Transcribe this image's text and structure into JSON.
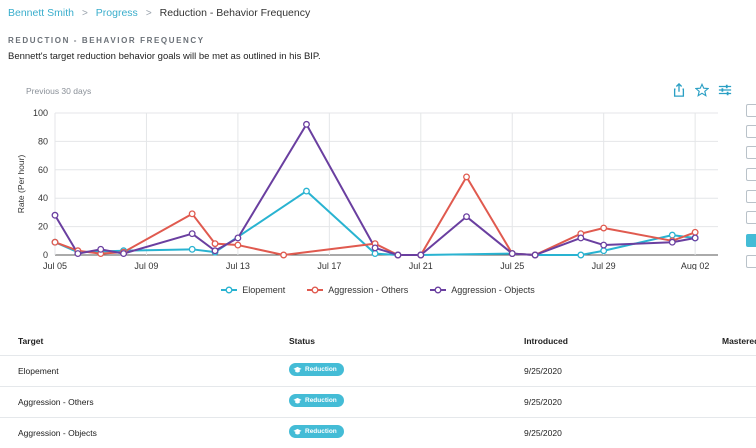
{
  "breadcrumb": {
    "items": [
      "Bennett Smith",
      "Progress"
    ],
    "current": "Reduction - Behavior Frequency"
  },
  "section": {
    "heading": "REDUCTION - BEHAVIOR FREQUENCY",
    "description": "Bennett's target reduction behavior goals will be met as outlined in his BIP."
  },
  "period_label": "Previous 30 days",
  "toolbar": {
    "icons": [
      "share-icon",
      "star-icon",
      "settings-icon"
    ]
  },
  "colors": {
    "accent": "#44bcd6",
    "elopement": "#29b3d1",
    "aggression_others": "#e05a4f",
    "aggression_objects": "#6a3fa0"
  },
  "chart_data": {
    "type": "line",
    "ylabel": "Rate (Per hour)",
    "xlabel": "",
    "ylim": [
      0,
      100
    ],
    "yticks": [
      0,
      20,
      40,
      60,
      80,
      100
    ],
    "xlim": [
      "2020-07-05",
      "2020-08-03"
    ],
    "xticks": [
      "Jul 05",
      "Jul 09",
      "Jul 13",
      "Jul 17",
      "Jul 21",
      "Jul 25",
      "Jul 29",
      "Aug 02"
    ],
    "grid": true,
    "legend_position": "bottom",
    "series": [
      {
        "name": "Elopement",
        "color": "#29b3d1",
        "points": [
          [
            "2020-07-05",
            9
          ],
          [
            "2020-07-06",
            2
          ],
          [
            "2020-07-08",
            3
          ],
          [
            "2020-07-11",
            4
          ],
          [
            "2020-07-12",
            2
          ],
          [
            "2020-07-16",
            45
          ],
          [
            "2020-07-19",
            1
          ],
          [
            "2020-07-20",
            0
          ],
          [
            "2020-07-21",
            0
          ],
          [
            "2020-07-25",
            1
          ],
          [
            "2020-07-26",
            0
          ],
          [
            "2020-07-28",
            0
          ],
          [
            "2020-07-29",
            3
          ],
          [
            "2020-08-01",
            14
          ],
          [
            "2020-08-02",
            12
          ]
        ]
      },
      {
        "name": "Aggression - Others",
        "color": "#e05a4f",
        "points": [
          [
            "2020-07-05",
            9
          ],
          [
            "2020-07-06",
            3
          ],
          [
            "2020-07-07",
            1
          ],
          [
            "2020-07-08",
            2
          ],
          [
            "2020-07-11",
            29
          ],
          [
            "2020-07-12",
            8
          ],
          [
            "2020-07-13",
            7
          ],
          [
            "2020-07-15",
            0
          ],
          [
            "2020-07-19",
            8
          ],
          [
            "2020-07-20",
            0
          ],
          [
            "2020-07-21",
            0
          ],
          [
            "2020-07-23",
            55
          ],
          [
            "2020-07-25",
            1
          ],
          [
            "2020-07-26",
            0
          ],
          [
            "2020-07-28",
            15
          ],
          [
            "2020-07-29",
            19
          ],
          [
            "2020-08-01",
            10
          ],
          [
            "2020-08-02",
            16
          ]
        ]
      },
      {
        "name": "Aggression - Objects",
        "color": "#6a3fa0",
        "points": [
          [
            "2020-07-05",
            28
          ],
          [
            "2020-07-06",
            1
          ],
          [
            "2020-07-07",
            4
          ],
          [
            "2020-07-08",
            1
          ],
          [
            "2020-07-11",
            15
          ],
          [
            "2020-07-12",
            3
          ],
          [
            "2020-07-13",
            12
          ],
          [
            "2020-07-16",
            92
          ],
          [
            "2020-07-19",
            5
          ],
          [
            "2020-07-20",
            0
          ],
          [
            "2020-07-21",
            0
          ],
          [
            "2020-07-23",
            27
          ],
          [
            "2020-07-25",
            1
          ],
          [
            "2020-07-26",
            0
          ],
          [
            "2020-07-28",
            12
          ],
          [
            "2020-07-29",
            7
          ],
          [
            "2020-08-01",
            9
          ],
          [
            "2020-08-02",
            12
          ]
        ]
      }
    ]
  },
  "table": {
    "headers": {
      "target": "Target",
      "status": "Status",
      "introduced": "Introduced",
      "mastered": "Mastered"
    },
    "rows": [
      {
        "target": "Elopement",
        "status": "Reduction",
        "introduced": "9/25/2020"
      },
      {
        "target": "Aggression - Others",
        "status": "Reduction",
        "introduced": "9/25/2020"
      },
      {
        "target": "Aggression - Objects",
        "status": "Reduction",
        "introduced": "9/25/2020"
      }
    ]
  }
}
